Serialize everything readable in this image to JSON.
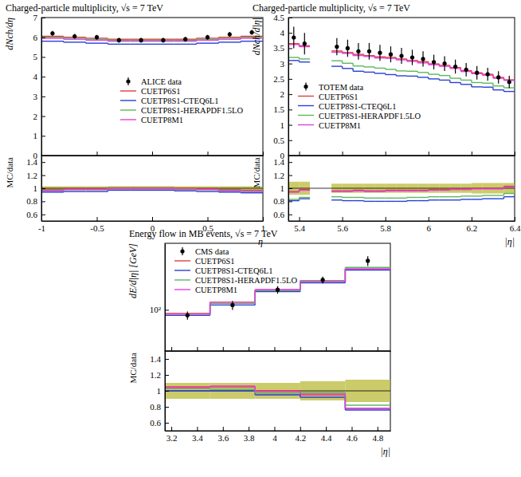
{
  "chart_data": [
    {
      "type": "histogram",
      "title": "Charged-particle multiplicity, √s = 7 TeV",
      "y_label": "dNch/dη",
      "x_label": "η",
      "xlim": [
        -1,
        1
      ],
      "xticks": [
        -1,
        -0.5,
        0,
        0.5,
        1
      ],
      "ylim": [
        0,
        7
      ],
      "yticks": [
        0,
        1,
        2,
        3,
        4,
        5,
        6,
        7
      ],
      "legend": "lower center",
      "bins": [
        -1,
        -0.8,
        -0.6,
        -0.4,
        -0.2,
        0,
        0.2,
        0.4,
        0.6,
        0.8,
        1
      ],
      "series": [
        {
          "name": "ALICE data",
          "type": "scatter",
          "marker": "circle",
          "color": "#000000",
          "values": [
            6.2,
            6.05,
            6.0,
            5.85,
            5.85,
            5.85,
            5.9,
            6.0,
            6.15,
            6.25
          ],
          "errors": [
            0.12,
            0.12,
            0.12,
            0.12,
            0.12,
            0.12,
            0.12,
            0.12,
            0.12,
            0.12
          ]
        },
        {
          "name": "CUETP6S1",
          "type": "step",
          "color": "#e33c3c",
          "values": [
            6.05,
            6.0,
            5.95,
            5.9,
            5.9,
            5.9,
            5.9,
            5.95,
            6.0,
            6.05
          ]
        },
        {
          "name": "CUETP8S1-CTEQ6L1",
          "type": "step",
          "color": "#2a3fd6",
          "values": [
            5.8,
            5.75,
            5.7,
            5.65,
            5.65,
            5.65,
            5.65,
            5.7,
            5.75,
            5.8
          ]
        },
        {
          "name": "CUETP8S1-HERAPDF1.5LO",
          "type": "step",
          "color": "#5cb85c",
          "values": [
            6.0,
            5.95,
            5.9,
            5.85,
            5.85,
            5.85,
            5.85,
            5.9,
            5.95,
            6.0
          ]
        },
        {
          "name": "CUETP8M1",
          "type": "step",
          "color": "#e040e0",
          "values": [
            5.95,
            5.9,
            5.85,
            5.8,
            5.8,
            5.8,
            5.8,
            5.85,
            5.9,
            5.95
          ]
        }
      ],
      "ratio": {
        "y_label": "MC/data",
        "ylim": [
          0.5,
          1.5
        ],
        "yticks": [
          0.6,
          0.8,
          1,
          1.2,
          1.4
        ],
        "reference": 1,
        "band": {
          "low": [
            0.97,
            0.97,
            0.97,
            0.97,
            0.97,
            0.97,
            0.97,
            0.97,
            0.97,
            0.97
          ],
          "high": [
            1.03,
            1.03,
            1.03,
            1.03,
            1.03,
            1.03,
            1.03,
            1.03,
            1.03,
            1.03
          ]
        },
        "series": [
          {
            "color": "#e33c3c",
            "values": [
              0.98,
              0.99,
              0.99,
              1.01,
              1.01,
              1.01,
              1.0,
              0.99,
              0.98,
              0.97
            ]
          },
          {
            "color": "#2a3fd6",
            "values": [
              0.94,
              0.95,
              0.95,
              0.97,
              0.97,
              0.97,
              0.96,
              0.95,
              0.94,
              0.93
            ]
          },
          {
            "color": "#5cb85c",
            "values": [
              0.97,
              0.98,
              0.98,
              1.0,
              1.0,
              1.0,
              0.99,
              0.98,
              0.97,
              0.96
            ]
          },
          {
            "color": "#e040e0",
            "values": [
              0.96,
              0.98,
              0.98,
              0.99,
              0.99,
              0.99,
              0.98,
              0.98,
              0.96,
              0.95
            ]
          }
        ]
      }
    },
    {
      "type": "histogram",
      "title": "Charged-particle multiplicity, √s = 7 TeV",
      "y_label": "dNch/d|η|",
      "x_label": "|η|",
      "xlim": [
        5.35,
        6.4
      ],
      "xticks": [
        5.4,
        5.6,
        5.8,
        6,
        6.2,
        6.4
      ],
      "ylim": [
        0,
        4.5
      ],
      "yticks": [
        0,
        0.5,
        1,
        1.5,
        2,
        2.5,
        3,
        3.5,
        4,
        4.5
      ],
      "legend": "center left",
      "bins": [
        5.35,
        5.4,
        5.45,
        5.55,
        5.6,
        5.65,
        5.7,
        5.75,
        5.8,
        5.85,
        5.9,
        5.95,
        6.0,
        6.05,
        6.1,
        6.15,
        6.2,
        6.25,
        6.3,
        6.35,
        6.4
      ],
      "series": [
        {
          "name": "TOTEM data",
          "type": "scatter",
          "marker": "circle",
          "color": "#000000",
          "values": [
            3.85,
            3.65,
            null,
            3.55,
            3.5,
            3.4,
            3.4,
            3.35,
            3.3,
            3.25,
            3.2,
            3.15,
            3.05,
            3.0,
            2.9,
            2.8,
            2.7,
            2.65,
            2.55,
            2.4
          ],
          "errors": [
            0.35,
            0.35,
            null,
            0.28,
            0.28,
            0.27,
            0.27,
            0.26,
            0.26,
            0.26,
            0.25,
            0.25,
            0.24,
            0.24,
            0.23,
            0.22,
            0.22,
            0.21,
            0.2,
            0.2
          ]
        },
        {
          "name": "CUETP6S1",
          "type": "step",
          "color": "#e33c3c",
          "values": [
            3.65,
            3.58,
            null,
            3.41,
            3.36,
            3.3,
            3.26,
            3.22,
            3.2,
            3.15,
            3.1,
            3.06,
            2.99,
            2.94,
            2.87,
            2.77,
            2.7,
            2.65,
            2.55,
            2.47
          ]
        },
        {
          "name": "CUETP8S1-CTEQ6L1",
          "type": "step",
          "color": "#2a3fd6",
          "values": [
            3.1,
            3.05,
            null,
            2.91,
            2.84,
            2.75,
            2.72,
            2.68,
            2.64,
            2.6,
            2.59,
            2.55,
            2.5,
            2.46,
            2.38,
            2.32,
            2.24,
            2.23,
            2.14,
            2.09
          ]
        },
        {
          "name": "CUETP8S1-HERAPDF1.5LO",
          "type": "step",
          "color": "#5cb85c",
          "values": [
            3.2,
            3.15,
            null,
            3.09,
            3.01,
            2.92,
            2.89,
            2.85,
            2.81,
            2.76,
            2.75,
            2.71,
            2.65,
            2.61,
            2.52,
            2.46,
            2.38,
            2.36,
            2.27,
            2.21
          ]
        },
        {
          "name": "CUETP8M1",
          "type": "step",
          "color": "#e040e0",
          "values": [
            3.62,
            3.55,
            null,
            3.37,
            3.33,
            3.26,
            3.23,
            3.18,
            3.17,
            3.12,
            3.07,
            3.02,
            2.96,
            2.91,
            2.84,
            2.74,
            2.67,
            2.62,
            2.52,
            2.45
          ]
        }
      ],
      "ratio": {
        "y_label": "MC/data",
        "ylim": [
          0.5,
          1.5
        ],
        "yticks": [
          0.6,
          0.8,
          1,
          1.2,
          1.4
        ],
        "reference": 1,
        "band": {
          "low": [
            0.9,
            0.9,
            null,
            0.93,
            0.93,
            0.93,
            0.93,
            0.93,
            0.93,
            0.93,
            0.93,
            0.93,
            0.93,
            0.93,
            0.93,
            0.93,
            0.92,
            0.92,
            0.92,
            0.92
          ],
          "high": [
            1.1,
            1.1,
            null,
            1.07,
            1.07,
            1.07,
            1.07,
            1.07,
            1.07,
            1.07,
            1.07,
            1.07,
            1.07,
            1.07,
            1.07,
            1.07,
            1.08,
            1.08,
            1.08,
            1.08
          ]
        },
        "series": [
          {
            "color": "#e33c3c",
            "values": [
              0.95,
              0.98,
              null,
              0.96,
              0.96,
              0.97,
              0.96,
              0.96,
              0.97,
              0.97,
              0.97,
              0.97,
              0.98,
              0.98,
              0.99,
              0.99,
              1.0,
              1.0,
              1.0,
              1.03
            ]
          },
          {
            "color": "#2a3fd6",
            "values": [
              0.81,
              0.84,
              null,
              0.82,
              0.81,
              0.81,
              0.8,
              0.8,
              0.8,
              0.8,
              0.81,
              0.81,
              0.82,
              0.82,
              0.82,
              0.83,
              0.83,
              0.84,
              0.84,
              0.87
            ]
          },
          {
            "color": "#5cb85c",
            "values": [
              0.83,
              0.86,
              null,
              0.87,
              0.86,
              0.86,
              0.85,
              0.85,
              0.85,
              0.85,
              0.86,
              0.86,
              0.87,
              0.87,
              0.87,
              0.88,
              0.88,
              0.89,
              0.89,
              0.92
            ]
          },
          {
            "color": "#e040e0",
            "values": [
              0.94,
              0.97,
              null,
              0.95,
              0.95,
              0.96,
              0.95,
              0.95,
              0.96,
              0.96,
              0.96,
              0.96,
              0.97,
              0.97,
              0.98,
              0.98,
              0.99,
              0.99,
              0.99,
              1.02
            ]
          }
        ]
      }
    },
    {
      "type": "histogram",
      "title": "Energy flow in MB events, √s = 7 TeV",
      "y_label": "dE/d|η| [GeV]",
      "x_label": "|η|",
      "log": "y",
      "xlim": [
        3.15,
        4.9
      ],
      "xticks": [
        3.2,
        3.4,
        3.6,
        3.8,
        4,
        4.2,
        4.4,
        4.6,
        4.8
      ],
      "ylim": [
        30,
        700
      ],
      "yticks": [
        {
          "value": 100,
          "label": "10²"
        }
      ],
      "legend": "upper left",
      "bins": [
        3.15,
        3.5,
        3.85,
        4.2,
        4.55,
        4.9
      ],
      "series": [
        {
          "name": "CMS data",
          "type": "scatter",
          "marker": "circle",
          "color": "#000000",
          "values": [
            85,
            115,
            180,
            240,
            420
          ],
          "errors": [
            10,
            15,
            20,
            25,
            60
          ]
        },
        {
          "name": "CUETP6S1",
          "type": "step",
          "color": "#e33c3c",
          "values": [
            90,
            125,
            180,
            230,
            330
          ]
        },
        {
          "name": "CUETP8S1-CTEQ6L1",
          "type": "step",
          "color": "#2a3fd6",
          "values": [
            85,
            115,
            170,
            220,
            320
          ]
        },
        {
          "name": "CUETP8S1-HERAPDF1.5LO",
          "type": "step",
          "color": "#5cb85c",
          "values": [
            88,
            120,
            175,
            235,
            345
          ]
        },
        {
          "name": "CUETP8M1",
          "type": "step",
          "color": "#e040e0",
          "values": [
            88,
            125,
            180,
            230,
            330
          ]
        }
      ],
      "ratio": {
        "y_label": "MC/data",
        "ylim": [
          0.5,
          1.5
        ],
        "yticks": [
          0.6,
          0.8,
          1,
          1.2,
          1.4
        ],
        "reference": 1,
        "band": {
          "low": [
            0.9,
            0.9,
            0.9,
            0.88,
            0.86
          ],
          "high": [
            1.1,
            1.1,
            1.1,
            1.12,
            1.14
          ]
        },
        "series": [
          {
            "color": "#e33c3c",
            "values": [
              1.05,
              1.05,
              1.0,
              0.95,
              0.78
            ]
          },
          {
            "color": "#2a3fd6",
            "values": [
              1.0,
              1.0,
              0.95,
              0.92,
              0.76
            ]
          },
          {
            "color": "#5cb85c",
            "values": [
              1.03,
              1.02,
              0.97,
              0.98,
              0.82
            ]
          },
          {
            "color": "#e040e0",
            "values": [
              1.04,
              1.06,
              0.99,
              0.96,
              0.78
            ]
          }
        ]
      }
    }
  ]
}
